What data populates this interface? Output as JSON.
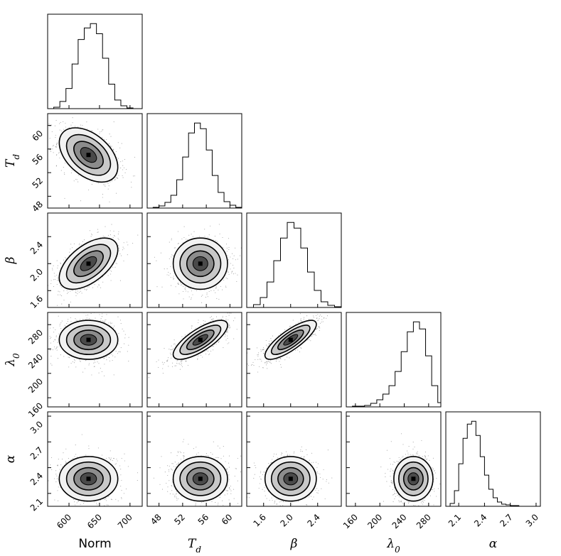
{
  "chart_data": {
    "type": "corner",
    "parameters": [
      {
        "key": "norm",
        "label": "Norm",
        "math": false,
        "range": [
          565,
          720
        ],
        "ticks": [
          600,
          650,
          700
        ],
        "tick_labels": [
          "600",
          "650",
          "700"
        ],
        "mean": 632,
        "sd": 24
      },
      {
        "key": "Td",
        "label": "T",
        "sub": "d",
        "math": true,
        "range": [
          46,
          62
        ],
        "ticks": [
          48,
          52,
          56,
          60
        ],
        "tick_labels": [
          "48",
          "52",
          "56",
          "60"
        ],
        "mean": 55,
        "sd": 2.3
      },
      {
        "key": "beta",
        "label": "β",
        "math": true,
        "range": [
          1.35,
          2.75
        ],
        "ticks": [
          1.6,
          2.0,
          2.4
        ],
        "tick_labels": [
          "1.6",
          "2.0",
          "2.4"
        ],
        "mean": 2.0,
        "sd": 0.19
      },
      {
        "key": "lambda0",
        "label": "λ",
        "sub": "0",
        "math": true,
        "range": [
          145,
          300
        ],
        "ticks": [
          160,
          200,
          240,
          280
        ],
        "tick_labels": [
          "160",
          "200",
          "240",
          "280"
        ],
        "mean": 255,
        "sd": 16
      },
      {
        "key": "alpha",
        "label": "α",
        "math": true,
        "range": [
          1.95,
          3.05
        ],
        "ticks": [
          2.1,
          2.4,
          2.7,
          3.0
        ],
        "tick_labels": [
          "2.1",
          "2.4",
          "2.7",
          "3.0"
        ],
        "mean": 2.27,
        "sd": 0.13
      }
    ],
    "correlations": [
      [
        1.0,
        -0.45,
        0.55,
        0.0,
        0.0
      ],
      [
        -0.45,
        1.0,
        0.0,
        0.75,
        0.0
      ],
      [
        0.55,
        0.0,
        1.0,
        0.8,
        0.0
      ],
      [
        0.0,
        0.75,
        0.8,
        1.0,
        0.0
      ],
      [
        0.0,
        0.0,
        0.0,
        0.0,
        1.0
      ]
    ],
    "histograms": {
      "norm": {
        "bins_x": [
          565,
          575,
          585,
          595,
          605,
          615,
          625,
          635,
          645,
          655,
          665,
          675,
          685,
          695,
          705,
          715
        ],
        "counts": [
          0,
          2,
          10,
          28,
          62,
          96,
          112,
          118,
          104,
          70,
          34,
          12,
          4,
          1,
          0
        ]
      },
      "Td": {
        "bins_x": [
          46,
          47,
          48,
          49,
          50,
          51,
          52,
          53,
          54,
          55,
          56,
          57,
          58,
          59,
          60,
          61,
          62
        ],
        "counts": [
          0,
          1,
          3,
          8,
          18,
          40,
          72,
          106,
          120,
          112,
          82,
          46,
          22,
          9,
          4,
          1
        ]
      },
      "beta": {
        "bins_x": [
          1.35,
          1.45,
          1.55,
          1.65,
          1.75,
          1.85,
          1.95,
          2.05,
          2.15,
          2.25,
          2.35,
          2.45,
          2.55,
          2.65,
          2.75
        ],
        "counts": [
          0,
          4,
          14,
          36,
          66,
          98,
          120,
          112,
          84,
          50,
          24,
          8,
          3,
          1
        ]
      },
      "lambda0": {
        "bins_x": [
          145,
          155,
          165,
          175,
          185,
          195,
          205,
          215,
          225,
          235,
          245,
          255,
          265,
          275,
          285,
          295,
          300
        ],
        "counts": [
          0,
          1,
          1,
          2,
          5,
          10,
          18,
          30,
          50,
          78,
          106,
          120,
          110,
          72,
          30,
          6
        ]
      },
      "alpha": {
        "bins_x": [
          1.95,
          2.0,
          2.05,
          2.1,
          2.15,
          2.2,
          2.25,
          2.3,
          2.35,
          2.4,
          2.45,
          2.5,
          2.55,
          2.6,
          2.65,
          2.7,
          2.75,
          2.8,
          2.85,
          2.9,
          2.95,
          3.0,
          3.05
        ],
        "counts": [
          0,
          4,
          22,
          60,
          96,
          116,
          120,
          100,
          70,
          44,
          24,
          12,
          6,
          3,
          2,
          1,
          1,
          0,
          0,
          0,
          0,
          0
        ]
      }
    },
    "title": "",
    "grid": false
  }
}
